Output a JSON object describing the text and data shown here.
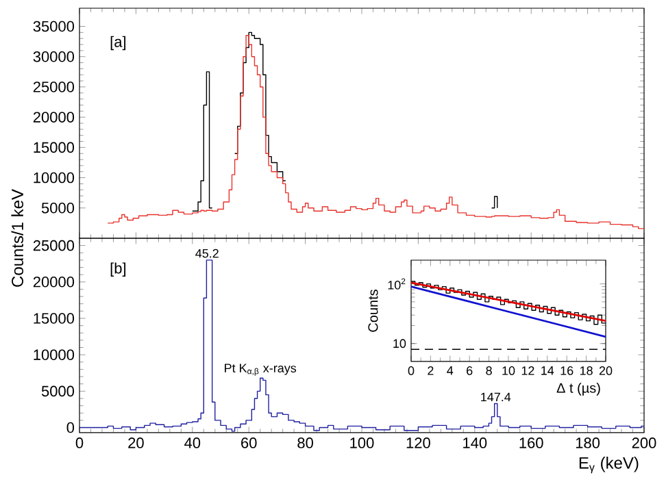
{
  "chart_data": [
    {
      "type": "step",
      "ylabel": "Counts/1 keV",
      "annotations": [
        "[a]"
      ],
      "xlim": [
        0,
        200
      ],
      "ylim": [
        0,
        38000
      ],
      "xticks": [
        0,
        20,
        40,
        60,
        80,
        100,
        120,
        140,
        160,
        180,
        200
      ],
      "yticks": [
        5000,
        10000,
        15000,
        20000,
        25000,
        30000,
        35000
      ],
      "tick_labels": "y",
      "series": [
        {
          "color": "#000000",
          "x": [
            40,
            42,
            43,
            44,
            45,
            46,
            47,
            55,
            56,
            57,
            58,
            59,
            60,
            61,
            62,
            63,
            64,
            65,
            66,
            67,
            68,
            70,
            72,
            73,
            146,
            147,
            148
          ],
          "values": [
            4500,
            6000,
            9500,
            22000,
            27500,
            5000,
            null,
            14000,
            18500,
            24000,
            29000,
            31500,
            34000,
            33500,
            33000,
            33000,
            32000,
            27000,
            17000,
            13500,
            12500,
            11000,
            9500,
            null,
            5000,
            6900,
            5000
          ]
        },
        {
          "color": "#e8322b",
          "x": [
            10,
            12,
            14,
            15,
            16,
            17,
            19,
            21,
            24,
            28,
            31,
            33,
            35,
            37,
            40,
            42,
            43,
            44,
            45,
            46,
            47,
            49,
            51,
            53,
            54,
            55,
            56,
            57,
            58,
            59,
            60,
            61,
            62,
            63,
            64,
            65,
            66,
            67,
            68,
            70,
            72,
            73,
            74,
            75,
            77,
            79,
            80,
            81,
            83,
            86,
            88,
            91,
            94,
            96,
            98,
            100,
            102,
            104,
            105,
            106,
            108,
            110,
            112,
            114,
            115,
            116,
            118,
            121,
            122,
            124,
            126,
            128,
            130,
            131,
            132,
            134,
            137,
            140,
            144,
            146,
            147,
            148,
            149,
            152,
            156,
            160,
            163,
            166,
            168,
            169,
            170,
            172,
            176,
            180,
            184,
            188,
            192,
            196,
            198,
            200
          ],
          "values": [
            2500,
            2700,
            3300,
            3900,
            3500,
            3000,
            3300,
            3700,
            3900,
            3800,
            3900,
            4600,
            4300,
            4000,
            4200,
            4400,
            4600,
            4500,
            4600,
            4600,
            4500,
            4800,
            6000,
            8000,
            10500,
            13000,
            18000,
            23500,
            30000,
            33500,
            32000,
            30000,
            28500,
            27000,
            25000,
            20000,
            14000,
            12000,
            11000,
            10000,
            9000,
            7500,
            6000,
            4800,
            4300,
            5200,
            5800,
            5000,
            4500,
            5200,
            4600,
            4300,
            4600,
            5200,
            4900,
            4700,
            4900,
            5800,
            6600,
            5500,
            4500,
            4300,
            5200,
            6000,
            6300,
            5300,
            4200,
            4500,
            5300,
            5000,
            4500,
            4800,
            5800,
            6800,
            5500,
            4200,
            3800,
            3600,
            3500,
            3600,
            3700,
            3700,
            3700,
            3600,
            3700,
            3400,
            3300,
            3400,
            4300,
            4700,
            3800,
            2800,
            2600,
            2500,
            2700,
            2300,
            2200,
            1900,
            1600,
            1600
          ]
        }
      ]
    },
    {
      "type": "step",
      "xlabel": "E$_{γ}$ (keV)",
      "annotations": [
        "[b]",
        {
          "text": "45.2",
          "x": 45.2,
          "y": 23000
        },
        {
          "text": "Pt K$_{α,β}$ x-rays",
          "x": 64,
          "y": 6800
        },
        {
          "text": "147.4",
          "x": 147.4,
          "y": 3300
        }
      ],
      "xlim": [
        0,
        200
      ],
      "ylim": [
        -700,
        26000
      ],
      "xticks": [
        0,
        20,
        40,
        60,
        80,
        100,
        120,
        140,
        160,
        180,
        200
      ],
      "yticks": [
        0,
        5000,
        10000,
        15000,
        20000,
        25000
      ],
      "series": [
        {
          "color": "#1f1fa0",
          "x": [
            0,
            5,
            10,
            12,
            15,
            18,
            20,
            23,
            25,
            27,
            30,
            33,
            36,
            38,
            40,
            42,
            43,
            44,
            45,
            46,
            47,
            48,
            50,
            52,
            54,
            55,
            57,
            59,
            61,
            62,
            63,
            64,
            65,
            66,
            67,
            68,
            70,
            72,
            74,
            76,
            78,
            80,
            83,
            85,
            88,
            90,
            95,
            100,
            105,
            110,
            115,
            120,
            125,
            130,
            135,
            140,
            143,
            145,
            146,
            147,
            148,
            149,
            152,
            156,
            160,
            165,
            170,
            175,
            180,
            185,
            190,
            195,
            199,
            200
          ],
          "values": [
            0,
            0,
            200,
            -100,
            100,
            -300,
            0,
            300,
            600,
            400,
            100,
            200,
            500,
            700,
            800,
            1200,
            2000,
            17800,
            23000,
            23000,
            3500,
            1000,
            300,
            -200,
            -500,
            0,
            500,
            1000,
            2500,
            4000,
            5000,
            6800,
            6500,
            4500,
            2000,
            1500,
            2000,
            1800,
            1000,
            800,
            600,
            200,
            -400,
            0,
            300,
            -200,
            200,
            0,
            -300,
            200,
            -400,
            100,
            300,
            -200,
            200,
            0,
            200,
            600,
            1500,
            3300,
            1500,
            200,
            0,
            200,
            -100,
            200,
            0,
            300,
            100,
            -100,
            200,
            0,
            200,
            200
          ]
        }
      ]
    },
    {
      "type": "line",
      "xlabel": "Δ t (µs)",
      "ylabel": "Counts",
      "log": "y",
      "xlim": [
        0,
        20
      ],
      "ylim": [
        5,
        250
      ],
      "xticks": [
        0,
        2,
        4,
        6,
        8,
        10,
        12,
        14,
        16,
        18,
        20
      ],
      "yticks": [
        10,
        {
          "value": 100,
          "label": "10$^{2}$"
        }
      ],
      "ref_lines": [
        {
          "axis": "y",
          "value": 8,
          "color": "#000000",
          "line_style": "dashed"
        }
      ],
      "series": [
        {
          "type": "step",
          "color": "#000000",
          "x": [
            0,
            0.4,
            0.8,
            1.2,
            1.6,
            2,
            2.4,
            2.8,
            3.2,
            3.6,
            4,
            4.4,
            4.8,
            5.2,
            5.6,
            6,
            6.4,
            6.8,
            7.2,
            7.6,
            8,
            8.4,
            8.8,
            9.2,
            9.6,
            10,
            10.4,
            10.8,
            11.2,
            11.6,
            12,
            12.4,
            12.8,
            13.2,
            13.6,
            14,
            14.4,
            14.8,
            15.2,
            15.6,
            16,
            16.4,
            16.8,
            17.2,
            17.6,
            18,
            18.4,
            18.8,
            19.2,
            19.6,
            20
          ],
          "values": [
            110,
            95,
            105,
            88,
            100,
            85,
            95,
            80,
            90,
            70,
            85,
            72,
            80,
            65,
            75,
            60,
            72,
            55,
            68,
            50,
            62,
            55,
            60,
            45,
            55,
            48,
            52,
            40,
            50,
            38,
            47,
            36,
            44,
            34,
            42,
            32,
            40,
            30,
            36,
            28,
            34,
            27,
            33,
            25,
            31,
            24,
            29,
            21,
            30,
            22,
            22
          ]
        },
        {
          "color": "#1010d0",
          "x": [
            0,
            5,
            10,
            15,
            20
          ],
          "values": [
            90,
            55.5,
            34.2,
            21.1,
            13
          ]
        },
        {
          "color": "#e00000",
          "x": [
            0,
            5,
            10,
            15,
            20
          ],
          "values": [
            105,
            72.6,
            50.2,
            34.7,
            24
          ]
        }
      ]
    }
  ]
}
